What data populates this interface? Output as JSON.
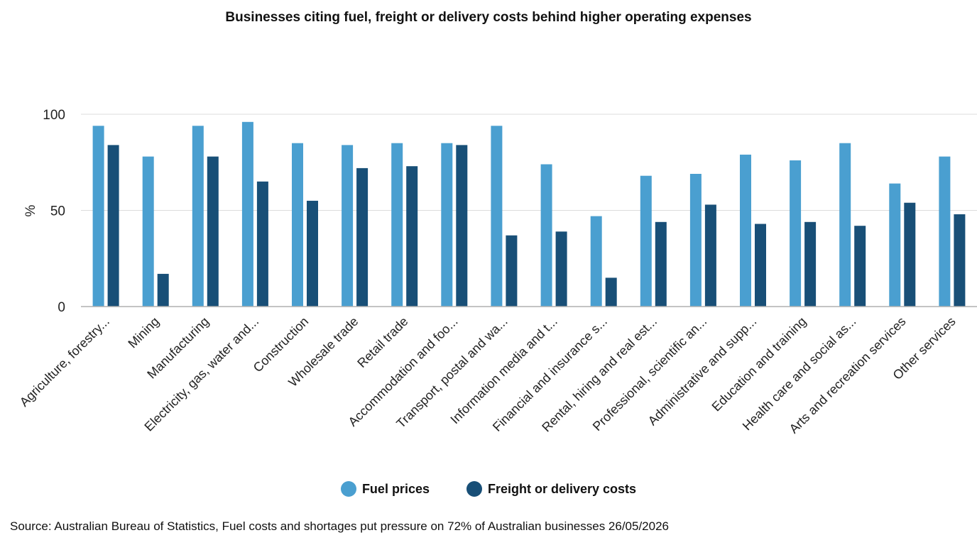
{
  "colors": {
    "fuel": "#4a9fd0",
    "freight": "#184f77",
    "grid": "#dcdcdc",
    "axis": "#b0b0b0"
  },
  "source": "Source: Australian Bureau of Statistics, Fuel costs and shortages put pressure on 72% of Australian businesses 26/05/2026",
  "chart_data": {
    "type": "bar",
    "title": "Businesses citing fuel, freight or delivery costs behind higher operating expenses",
    "xlabel": "",
    "ylabel": "%",
    "ylim": [
      0,
      100
    ],
    "yticks": [
      0,
      50,
      100
    ],
    "grid": true,
    "legend_position": "bottom",
    "categories": [
      "Agriculture, forestry...",
      "Mining",
      "Manufacturing",
      "Electricity, gas, water and...",
      "Construction",
      "Wholesale trade",
      "Retail trade",
      "Accommodation and foo...",
      "Transport, postal and wa...",
      "Information media and t...",
      "Financial and insurance s...",
      "Rental, hiring and real est...",
      "Professional, scientific an...",
      "Administrative and supp...",
      "Education and training",
      "Health care and social as...",
      "Arts and recreation services",
      "Other services"
    ],
    "series": [
      {
        "name": "Fuel prices",
        "values": [
          94,
          78,
          94,
          96,
          85,
          84,
          85,
          85,
          94,
          74,
          47,
          68,
          69,
          79,
          76,
          85,
          64,
          78
        ]
      },
      {
        "name": "Freight or delivery costs",
        "values": [
          84,
          17,
          78,
          65,
          55,
          72,
          73,
          84,
          37,
          39,
          15,
          44,
          53,
          43,
          44,
          42,
          54,
          48
        ]
      }
    ]
  }
}
